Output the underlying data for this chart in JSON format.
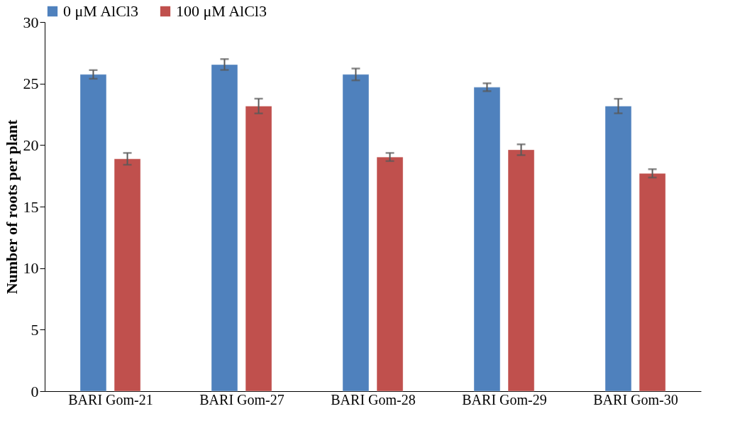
{
  "chart_data": {
    "type": "bar",
    "ylabel": "Number of roots per plant",
    "categories": [
      "BARI Gom-21",
      "BARI Gom-27",
      "BARI Gom-28",
      "BARI Gom-29",
      "BARI Gom-30"
    ],
    "series": [
      {
        "name": "0 μM AlCl3",
        "color": "#4f81bd",
        "values": [
          25.74,
          26.54,
          25.74,
          24.7,
          23.17
        ],
        "errors": [
          0.35,
          0.44,
          0.48,
          0.32,
          0.59
        ]
      },
      {
        "name": "100 μM AlCl3",
        "color": "#c0504d",
        "values": [
          18.88,
          23.17,
          19.03,
          19.62,
          17.7
        ],
        "errors": [
          0.48,
          0.6,
          0.33,
          0.44,
          0.34
        ]
      }
    ],
    "ylim": [
      0,
      30
    ],
    "yticks": [
      0,
      5,
      10,
      15,
      20,
      25,
      30
    ],
    "grid": false,
    "legend": "top"
  }
}
